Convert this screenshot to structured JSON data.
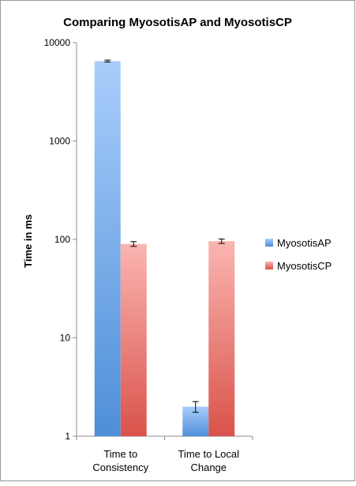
{
  "chart_data": {
    "type": "bar",
    "title": "Comparing MyosotisAP and MyosotisCP",
    "xlabel": "",
    "ylabel": "Time in ms",
    "yscale": "log",
    "ylim": [
      1,
      10000
    ],
    "yticks": [
      "1",
      "10",
      "100",
      "1000",
      "10000"
    ],
    "categories": [
      [
        "Time to",
        "Consistency"
      ],
      [
        "Time to Local",
        "Change"
      ]
    ],
    "series": [
      {
        "name": "MyosotisAP",
        "values": [
          6500,
          2
        ],
        "errors": [
          150,
          0.25
        ],
        "color_top": "#a9cdfb",
        "color_bottom": "#4e8fd8"
      },
      {
        "name": "MyosotisCP",
        "values": [
          90,
          96
        ],
        "errors": [
          5,
          5
        ],
        "color_top": "#fbb5b1",
        "color_bottom": "#d9534b"
      }
    ],
    "grid": false,
    "legend_position": "right"
  }
}
